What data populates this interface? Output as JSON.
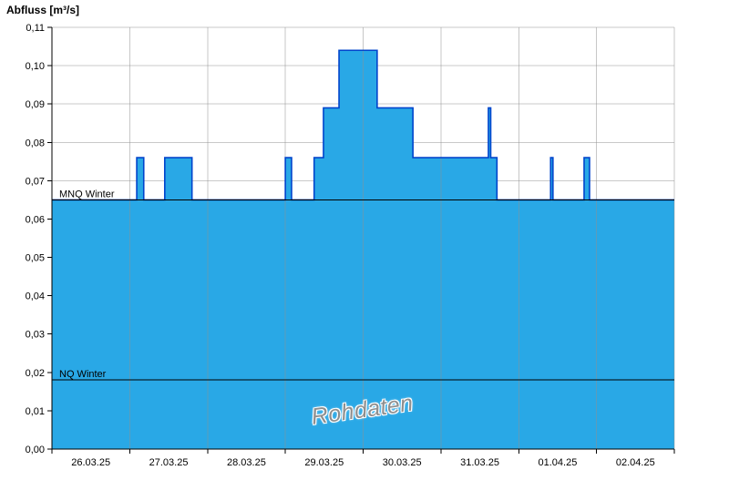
{
  "watermark": "Rohdaten",
  "chart_data": {
    "type": "area",
    "title": "Abfluss [m³/s]",
    "ylabel": "Abfluss [m³/s]",
    "xlabel": "",
    "ylim": [
      0,
      0.11
    ],
    "grid": true,
    "legend": "none",
    "watermark": "Rohdaten",
    "y_tick_labels": [
      "0,00",
      "0,01",
      "0,02",
      "0,03",
      "0,04",
      "0,05",
      "0,06",
      "0,07",
      "0,08",
      "0,09",
      "0,10",
      "0,11"
    ],
    "y_tick_values": [
      0,
      0.01,
      0.02,
      0.03,
      0.04,
      0.05,
      0.06,
      0.07,
      0.08,
      0.09,
      0.1,
      0.11
    ],
    "x_tick_labels": [
      "26.03.25",
      "27.03.25",
      "28.03.25",
      "29.03.25",
      "30.03.25",
      "31.03.25",
      "01.04.25",
      "02.04.25"
    ],
    "x_span_days": 8,
    "colors": {
      "fill": "#29a8e6",
      "line": "#0044cc",
      "grid": "#c9c9c9",
      "grid_vertical": "#8f8f8f",
      "axis": "#000000",
      "reference": "#000000"
    },
    "steps": [
      {
        "from": 0.0,
        "to": 1.09,
        "value": 0.065
      },
      {
        "from": 1.09,
        "to": 1.18,
        "value": 0.076
      },
      {
        "from": 1.18,
        "to": 1.45,
        "value": 0.065
      },
      {
        "from": 1.45,
        "to": 1.8,
        "value": 0.076
      },
      {
        "from": 1.8,
        "to": 3.0,
        "value": 0.065
      },
      {
        "from": 3.0,
        "to": 3.08,
        "value": 0.076
      },
      {
        "from": 3.08,
        "to": 3.37,
        "value": 0.065
      },
      {
        "from": 3.37,
        "to": 3.49,
        "value": 0.076
      },
      {
        "from": 3.49,
        "to": 3.69,
        "value": 0.089
      },
      {
        "from": 3.69,
        "to": 4.18,
        "value": 0.104
      },
      {
        "from": 4.18,
        "to": 4.64,
        "value": 0.089
      },
      {
        "from": 4.64,
        "to": 5.61,
        "value": 0.076
      },
      {
        "from": 5.61,
        "to": 5.64,
        "value": 0.089
      },
      {
        "from": 5.64,
        "to": 5.72,
        "value": 0.076
      },
      {
        "from": 5.72,
        "to": 6.41,
        "value": 0.065
      },
      {
        "from": 6.41,
        "to": 6.44,
        "value": 0.076
      },
      {
        "from": 6.44,
        "to": 6.84,
        "value": 0.065
      },
      {
        "from": 6.84,
        "to": 6.91,
        "value": 0.076
      },
      {
        "from": 6.91,
        "to": 8.0,
        "value": 0.065
      }
    ],
    "reference_lines": [
      {
        "label": "MNQ Winter",
        "value": 0.065
      },
      {
        "label": "NQ Winter",
        "value": 0.018
      }
    ]
  }
}
